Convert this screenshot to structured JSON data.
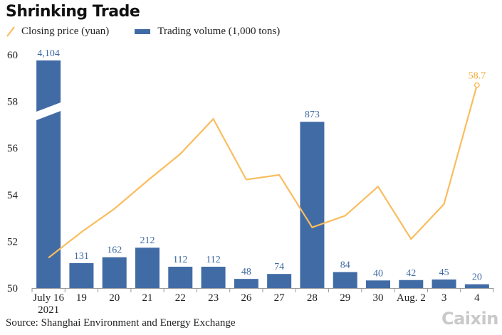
{
  "title": "Shrinking Trade",
  "legend": {
    "price_label": "Closing price (yuan)",
    "volume_label": "Trading volume (1,000 tons)"
  },
  "source": "Source: Shanghai Environment and Energy Exchange",
  "logo": "Caixin",
  "colors": {
    "bar": "#416ba5",
    "line": "#f9bd5e",
    "axis": "#999999"
  },
  "chart_data": {
    "type": "bar",
    "categories": [
      "July 16",
      "19",
      "20",
      "21",
      "22",
      "23",
      "26",
      "27",
      "28",
      "29",
      "30",
      "Aug. 2",
      "3",
      "4"
    ],
    "category_sublabels": [
      "2021",
      "",
      "",
      "",
      "",
      "",
      "",
      "",
      "",
      "",
      "",
      "",
      "",
      ""
    ],
    "series": [
      {
        "name": "Trading volume (1,000 tons)",
        "type": "bar",
        "values": [
          4104,
          131,
          162,
          212,
          112,
          112,
          48,
          74,
          873,
          84,
          40,
          42,
          45,
          20
        ],
        "value_labels": [
          "4,104",
          "131",
          "162",
          "212",
          "112",
          "112",
          "48",
          "74",
          "873",
          "84",
          "40",
          "42",
          "45",
          "20"
        ],
        "broken_bar_index": 0
      },
      {
        "name": "Closing price (yuan)",
        "type": "line",
        "values": [
          51.3,
          52.4,
          53.4,
          54.6,
          55.75,
          57.25,
          54.65,
          54.85,
          52.6,
          53.1,
          54.35,
          52.1,
          53.6,
          58.7
        ],
        "labeled_point": {
          "index": 13,
          "label": "58.7"
        }
      }
    ],
    "y_ticks": [
      "50",
      "52",
      "54",
      "56",
      "58",
      "60"
    ],
    "ylim": [
      50,
      60
    ],
    "bar_scale_per_y_unit": 122.5,
    "legend_position": "top-left",
    "grid": false
  }
}
